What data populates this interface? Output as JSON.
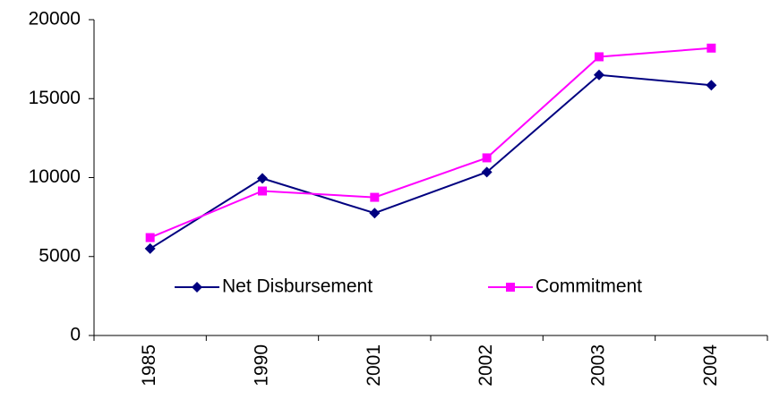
{
  "chart_data": {
    "type": "line",
    "categories": [
      "1985",
      "1990",
      "2001",
      "2002",
      "2003",
      "2004"
    ],
    "series": [
      {
        "name": "Net Disbursement",
        "color": "#000080",
        "marker": "diamond",
        "values": [
          5500,
          9950,
          7750,
          10350,
          16500,
          15850
        ]
      },
      {
        "name": "Commitment",
        "color": "#ff00ff",
        "marker": "square",
        "values": [
          6200,
          9150,
          8750,
          11250,
          17650,
          18200
        ]
      }
    ],
    "ylim": [
      0,
      20000
    ],
    "yticks": [
      0,
      5000,
      10000,
      15000,
      20000
    ],
    "grid": false,
    "legend": "center"
  }
}
